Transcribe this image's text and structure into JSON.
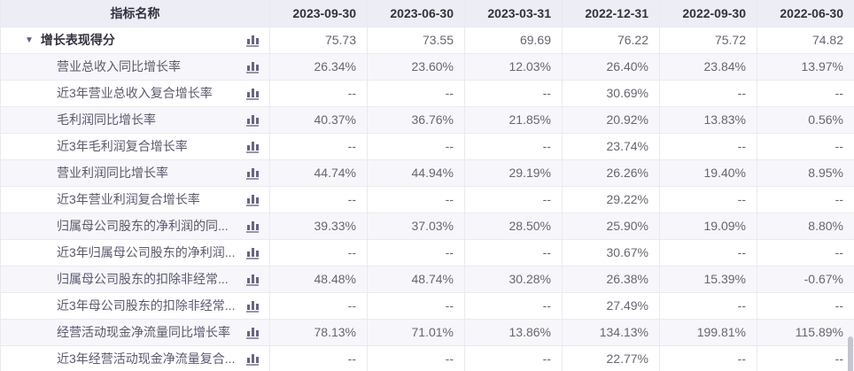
{
  "header": {
    "indicator_col": "指标名称",
    "dates": [
      "2023-09-30",
      "2023-06-30",
      "2023-03-31",
      "2022-12-31",
      "2022-09-30",
      "2022-06-30"
    ]
  },
  "rows": [
    {
      "group": true,
      "label": "增长表现得分",
      "values": [
        "75.73",
        "73.55",
        "69.69",
        "76.22",
        "75.72",
        "74.82"
      ]
    },
    {
      "group": false,
      "label": "营业总收入同比增长率",
      "values": [
        "26.34%",
        "23.60%",
        "12.03%",
        "26.40%",
        "23.84%",
        "13.97%"
      ]
    },
    {
      "group": false,
      "label": "近3年营业总收入复合增长率",
      "values": [
        "--",
        "--",
        "--",
        "30.69%",
        "--",
        "--"
      ]
    },
    {
      "group": false,
      "label": "毛利润同比增长率",
      "values": [
        "40.37%",
        "36.76%",
        "21.85%",
        "20.92%",
        "13.83%",
        "0.56%"
      ]
    },
    {
      "group": false,
      "label": "近3年毛利润复合增长率",
      "values": [
        "--",
        "--",
        "--",
        "23.74%",
        "--",
        "--"
      ]
    },
    {
      "group": false,
      "label": "营业利润同比增长率",
      "values": [
        "44.74%",
        "44.94%",
        "29.19%",
        "26.26%",
        "19.40%",
        "8.95%"
      ]
    },
    {
      "group": false,
      "label": "近3年营业利润复合增长率",
      "values": [
        "--",
        "--",
        "--",
        "29.22%",
        "--",
        "--"
      ]
    },
    {
      "group": false,
      "label": "归属母公司股东的净利润的同...",
      "values": [
        "39.33%",
        "37.03%",
        "28.50%",
        "25.90%",
        "19.09%",
        "8.80%"
      ]
    },
    {
      "group": false,
      "label": "近3年归属母公司股东的净利润...",
      "values": [
        "--",
        "--",
        "--",
        "30.67%",
        "--",
        "--"
      ]
    },
    {
      "group": false,
      "label": "归属母公司股东的扣除非经常...",
      "values": [
        "48.48%",
        "48.74%",
        "30.28%",
        "26.38%",
        "15.39%",
        "-0.67%"
      ]
    },
    {
      "group": false,
      "label": "近3年母公司股东的扣除非经常...",
      "values": [
        "--",
        "--",
        "--",
        "27.49%",
        "--",
        "--"
      ]
    },
    {
      "group": false,
      "label": "经营活动现金净流量同比增长率",
      "values": [
        "78.13%",
        "71.01%",
        "13.86%",
        "134.13%",
        "199.81%",
        "115.89%"
      ]
    },
    {
      "group": false,
      "label": "近3年经营活动现金净流量复合...",
      "values": [
        "--",
        "--",
        "--",
        "22.77%",
        "--",
        "--"
      ]
    }
  ],
  "icons": {
    "caret": "▼",
    "row_icon": "bar-chart"
  },
  "colors": {
    "header_bg": "#ededf6",
    "stripe_bg": "#f7f7fb",
    "row_bg": "#ffffff",
    "border": "#e9e9f2",
    "header_text": "#32323f",
    "label_text": "#5a5a6e",
    "group_text": "#333340",
    "value_text": "#666672",
    "caret": "#5e5e78",
    "icon_bars": "#66667f",
    "icon_base": "#9595af",
    "scrollbar": "#c5c5cf"
  }
}
